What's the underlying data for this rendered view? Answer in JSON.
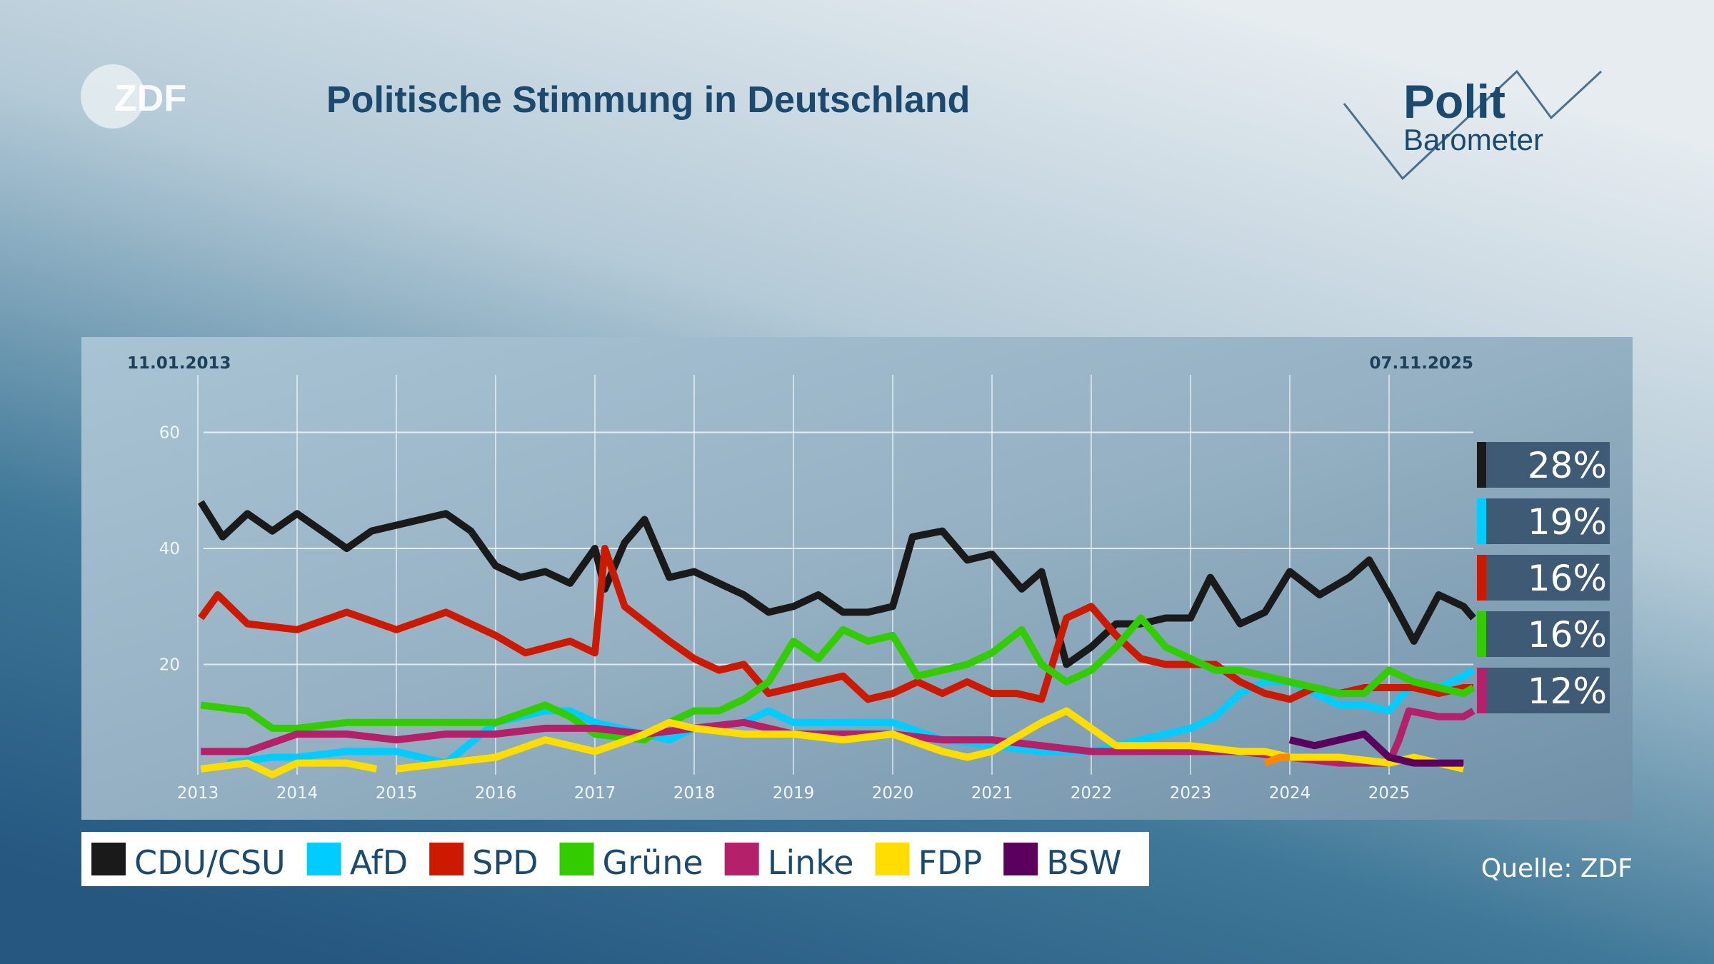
{
  "header": {
    "title": "Politische Stimmung in Deutschland",
    "logo_left": "ZDF",
    "logo_right_line1": "Polit",
    "logo_right_line2": "Barometer"
  },
  "source": "Quelle: ZDF",
  "chart_data": {
    "type": "line",
    "title": "Politische Stimmung in Deutschland",
    "start_date": "11.01.2013",
    "end_date": "07.11.2025",
    "xlabel": "",
    "ylabel": "",
    "x_ticks": [
      "2013",
      "2014",
      "2015",
      "2016",
      "2017",
      "2018",
      "2019",
      "2020",
      "2021",
      "2022",
      "2023",
      "2024",
      "2025"
    ],
    "y_ticks": [
      "20",
      "40",
      "60"
    ],
    "xlim": [
      2013.03,
      2025.85
    ],
    "ylim": [
      0,
      60
    ],
    "grid": true,
    "legend_position": "bottom-left",
    "series": [
      {
        "name": "CDU/CSU",
        "color": "#1a1a1a",
        "x": [
          2013.03,
          2013.25,
          2013.5,
          2013.75,
          2014,
          2014.25,
          2014.5,
          2014.75,
          2015,
          2015.25,
          2015.5,
          2015.75,
          2016,
          2016.25,
          2016.5,
          2016.75,
          2017,
          2017.1,
          2017.3,
          2017.5,
          2017.75,
          2018,
          2018.25,
          2018.5,
          2018.75,
          2019,
          2019.25,
          2019.5,
          2019.75,
          2020,
          2020.2,
          2020.5,
          2020.75,
          2021,
          2021.3,
          2021.5,
          2021.75,
          2022,
          2022.25,
          2022.5,
          2022.75,
          2023,
          2023.2,
          2023.5,
          2023.75,
          2024,
          2024.3,
          2024.6,
          2024.8,
          2025,
          2025.25,
          2025.5,
          2025.75,
          2025.85
        ],
        "values": [
          48,
          42,
          46,
          43,
          46,
          43,
          40,
          43,
          44,
          45,
          46,
          43,
          37,
          35,
          36,
          34,
          40,
          33,
          41,
          45,
          35,
          36,
          34,
          32,
          29,
          30,
          32,
          29,
          29,
          30,
          42,
          43,
          38,
          39,
          33,
          36,
          20,
          23,
          27,
          27,
          28,
          28,
          35,
          27,
          29,
          36,
          32,
          35,
          38,
          32,
          24,
          32,
          30,
          28
        ]
      },
      {
        "name": "AfD",
        "color": "#00ccff",
        "x": [
          2013.3,
          2013.75,
          2014,
          2014.5,
          2015,
          2015.5,
          2016,
          2016.5,
          2016.75,
          2017,
          2017.5,
          2017.75,
          2018,
          2018.5,
          2018.75,
          2019,
          2019.5,
          2019.75,
          2020,
          2020.5,
          2021,
          2021.5,
          2022,
          2022.5,
          2022.75,
          2023,
          2023.25,
          2023.5,
          2023.75,
          2024,
          2024.5,
          2024.75,
          2025,
          2025.25,
          2025.5,
          2025.75,
          2025.85
        ],
        "values": [
          3,
          4,
          4,
          5,
          5,
          3,
          10,
          12,
          12,
          10,
          8,
          7,
          9,
          10,
          12,
          10,
          10,
          10,
          10,
          7,
          6,
          5,
          5,
          7,
          8,
          9,
          11,
          15,
          17,
          17,
          13,
          13,
          12,
          17,
          16,
          18,
          19
        ]
      },
      {
        "name": "SPD",
        "color": "#cc1a00",
        "x": [
          2013.03,
          2013.2,
          2013.5,
          2014,
          2014.5,
          2015,
          2015.5,
          2016,
          2016.3,
          2016.75,
          2017,
          2017.1,
          2017.3,
          2017.75,
          2018,
          2018.25,
          2018.5,
          2018.75,
          2019,
          2019.5,
          2019.75,
          2020,
          2020.25,
          2020.5,
          2020.75,
          2021,
          2021.25,
          2021.5,
          2021.75,
          2022,
          2022.25,
          2022.5,
          2022.75,
          2023,
          2023.25,
          2023.5,
          2023.75,
          2024,
          2024.25,
          2024.5,
          2024.75,
          2025,
          2025.25,
          2025.5,
          2025.75,
          2025.85
        ],
        "values": [
          28,
          32,
          27,
          26,
          29,
          26,
          29,
          25,
          22,
          24,
          22,
          40,
          30,
          24,
          21,
          19,
          20,
          15,
          16,
          18,
          14,
          15,
          17,
          15,
          17,
          15,
          15,
          14,
          28,
          30,
          25,
          21,
          20,
          20,
          20,
          17,
          15,
          14,
          16,
          15,
          16,
          16,
          16,
          15,
          16,
          16
        ]
      },
      {
        "name": "Grüne",
        "color": "#33cc00",
        "x": [
          2013.03,
          2013.5,
          2013.75,
          2014,
          2014.5,
          2015,
          2015.5,
          2016,
          2016.5,
          2016.75,
          2017,
          2017.5,
          2017.75,
          2018,
          2018.25,
          2018.5,
          2018.75,
          2019,
          2019.25,
          2019.5,
          2019.75,
          2020,
          2020.25,
          2020.5,
          2020.75,
          2021,
          2021.3,
          2021.5,
          2021.75,
          2022,
          2022.25,
          2022.5,
          2022.75,
          2023,
          2023.25,
          2023.5,
          2023.75,
          2024,
          2024.25,
          2024.5,
          2024.75,
          2025,
          2025.25,
          2025.5,
          2025.75,
          2025.85
        ],
        "values": [
          13,
          12,
          9,
          9,
          10,
          10,
          10,
          10,
          13,
          11,
          8,
          7,
          10,
          12,
          12,
          14,
          17,
          24,
          21,
          26,
          24,
          25,
          18,
          19,
          20,
          22,
          26,
          20,
          17,
          19,
          23,
          28,
          23,
          21,
          19,
          19,
          18,
          17,
          16,
          15,
          15,
          19,
          17,
          16,
          15,
          16
        ]
      },
      {
        "name": "Linke",
        "color": "#b5206b",
        "x": [
          2013.03,
          2013.5,
          2014,
          2014.5,
          2015,
          2015.5,
          2016,
          2016.5,
          2017,
          2017.5,
          2018,
          2018.5,
          2019,
          2019.5,
          2020,
          2020.5,
          2021,
          2021.5,
          2022,
          2022.5,
          2023,
          2023.5,
          2024,
          2024.5,
          2025,
          2025.1,
          2025.2,
          2025.5,
          2025.75,
          2025.85
        ],
        "values": [
          5,
          5,
          8,
          8,
          7,
          8,
          8,
          9,
          9,
          8,
          9,
          10,
          8,
          8,
          8,
          7,
          7,
          6,
          5,
          5,
          5,
          5,
          4,
          3,
          3,
          7,
          12,
          11,
          11,
          12
        ]
      },
      {
        "name": "FDP",
        "color": "#ffdd00",
        "x": [
          2013.03,
          2013.5,
          2013.75,
          2014,
          2014.5,
          2014.8,
          null,
          2015,
          2015.5,
          2016,
          2016.5,
          2017,
          2017.5,
          2017.75,
          2018,
          2018.5,
          2019,
          2019.5,
          2020,
          2020.5,
          2020.75,
          2021,
          2021.3,
          2021.5,
          2021.75,
          2022,
          2022.25,
          2022.5,
          2023,
          2023.5,
          2023.75,
          2024,
          2024.5,
          2025,
          2025.25,
          2025.5,
          2025.75
        ],
        "values": [
          2,
          3,
          1,
          3,
          3,
          2,
          null,
          2,
          3,
          4,
          7,
          5,
          8,
          10,
          9,
          8,
          8,
          7,
          8,
          5,
          4,
          5,
          8,
          10,
          12,
          9,
          6,
          6,
          6,
          5,
          5,
          4,
          4,
          3,
          4,
          3,
          2
        ]
      },
      {
        "name": "BSW",
        "color": "#5c005e",
        "x": [
          2024.0,
          2024.25,
          2024.5,
          2024.75,
          2025,
          2025.25,
          2025.5,
          2025.75
        ],
        "values": [
          7,
          6,
          7,
          8,
          4,
          3,
          3,
          3
        ]
      },
      {
        "color": "#ff8800",
        "x": [
          2023.75,
          2023.9,
          2024.0
        ],
        "values": [
          3,
          4,
          4
        ]
      }
    ],
    "current_values": [
      {
        "party": "CDU/CSU",
        "label": "28%",
        "value": 28,
        "color": "#1a1a1a"
      },
      {
        "party": "AfD",
        "label": "19%",
        "value": 19,
        "color": "#00ccff"
      },
      {
        "party": "SPD",
        "label": "16%",
        "value": 16,
        "color": "#cc1a00"
      },
      {
        "party": "Grüne",
        "label": "16%",
        "value": 16,
        "color": "#33cc00"
      },
      {
        "party": "Linke",
        "label": "12%",
        "value": 12,
        "color": "#b5206b"
      }
    ]
  }
}
